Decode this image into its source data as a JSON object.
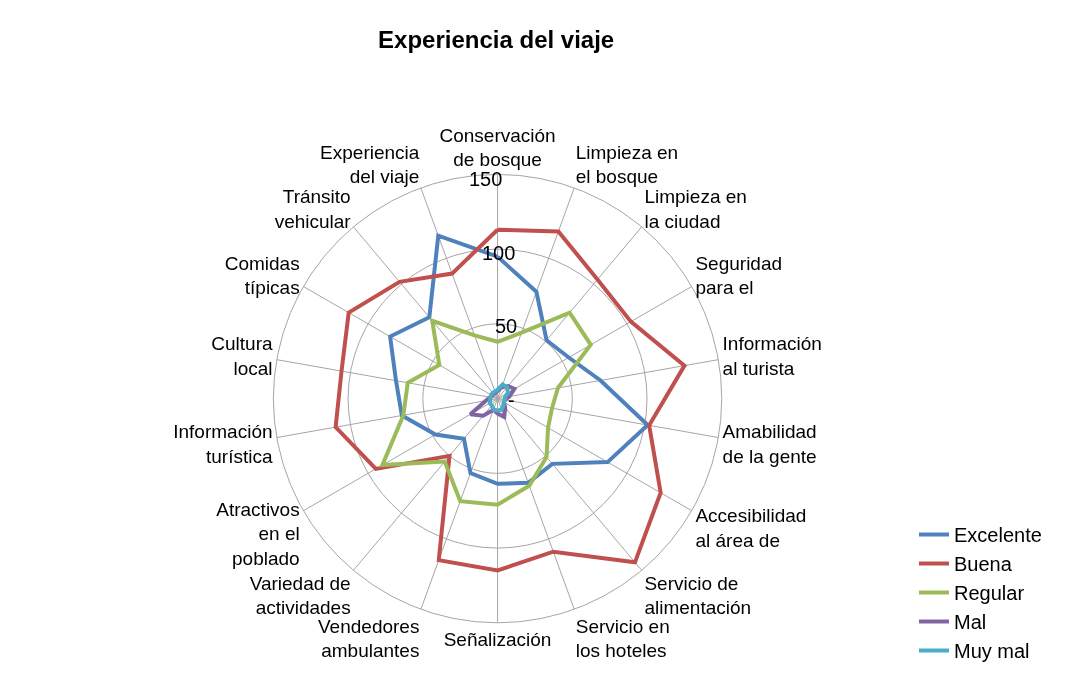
{
  "chart_data": {
    "type": "radar",
    "title": "Experiencia del viaje",
    "categories": [
      "Conservación de bosque",
      "Limpieza en el bosque",
      "Limpieza en la ciudad",
      "Seguridad para el",
      "Información al turista",
      "Amabilidad de la gente",
      "Accesibilidad al área de",
      "Servicio de alimentación",
      "Servicio en los hoteles",
      "Señalización",
      "Vendedores ambulantes",
      "Variedad de actividades",
      "Atractivos en el poblado",
      "Información turística",
      "Cultura local",
      "Comidas típicas",
      "Tránsito vehicular",
      "Experiencia del viaje"
    ],
    "series": [
      {
        "name": "Excelente",
        "color": "#4f81bd",
        "values": [
          95,
          76,
          51,
          55,
          70,
          102,
          85,
          57,
          60,
          57,
          53,
          35,
          48,
          65,
          69,
          83,
          71,
          116
        ]
      },
      {
        "name": "Buena",
        "color": "#c0504d",
        "values": [
          113,
          119,
          104,
          103,
          127,
          103,
          126,
          143,
          109,
          115,
          115,
          50,
          94,
          110,
          106,
          115,
          102,
          89
        ]
      },
      {
        "name": "Regular",
        "color": "#9bbb59",
        "values": [
          38,
          47,
          75,
          72,
          41,
          37,
          39,
          51,
          62,
          71,
          73,
          55,
          89,
          64,
          61,
          45,
          68,
          45
        ]
      },
      {
        "name": "Mal",
        "color": "#8064a2",
        "values": [
          5,
          8,
          11,
          13,
          8,
          5,
          5,
          8,
          13,
          10,
          8,
          15,
          21,
          8,
          5,
          4,
          4,
          4
        ]
      },
      {
        "name": "Muy mal",
        "color": "#4bacc6",
        "values": [
          6,
          10,
          10,
          8,
          5,
          5,
          5,
          6,
          8,
          8,
          8,
          6,
          6,
          5,
          5,
          5,
          5,
          5
        ]
      }
    ],
    "ylim": [
      0,
      150
    ],
    "yticks": [
      {
        "value": 0,
        "label": "-"
      },
      50,
      100,
      150
    ],
    "grid": true,
    "legend": "bottom right",
    "marker": "none",
    "line_style": "solid"
  }
}
